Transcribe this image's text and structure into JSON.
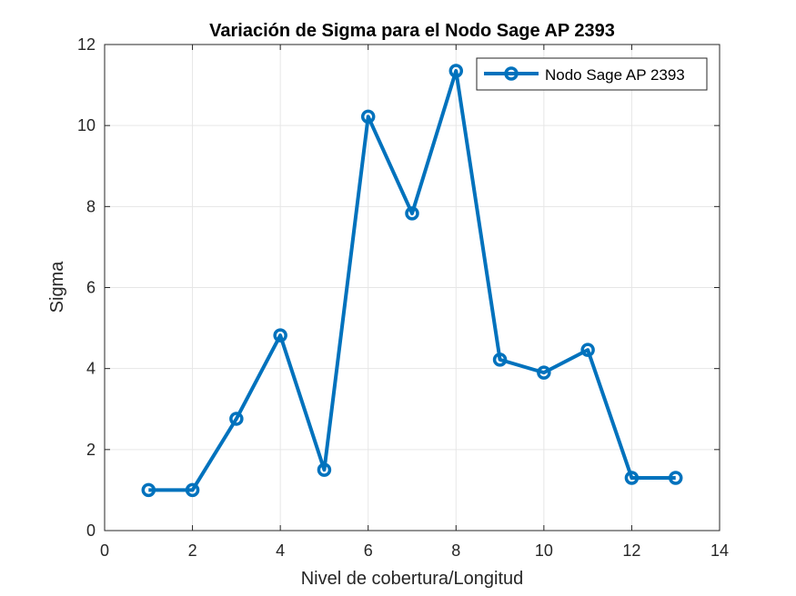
{
  "chart_data": {
    "type": "line",
    "title": "Variación de Sigma para el Nodo Sage AP 2393",
    "xlabel": "Nivel de cobertura/Longitud",
    "ylabel": "Sigma",
    "xlim": [
      0,
      14
    ],
    "ylim": [
      0,
      12
    ],
    "xticks": [
      0,
      2,
      4,
      6,
      8,
      10,
      12,
      14
    ],
    "yticks": [
      0,
      2,
      4,
      6,
      8,
      10,
      12
    ],
    "grid": true,
    "legend_position": "top-right",
    "series": [
      {
        "name": "Nodo Sage AP 2393",
        "color": "#0072BD",
        "marker": "circle",
        "x": [
          1,
          2,
          3,
          4,
          5,
          6,
          7,
          8,
          9,
          10,
          11,
          12,
          13
        ],
        "y": [
          1.0,
          1.0,
          2.76,
          4.82,
          1.5,
          10.22,
          7.83,
          11.35,
          4.22,
          3.9,
          4.46,
          1.3,
          1.3
        ]
      }
    ]
  }
}
